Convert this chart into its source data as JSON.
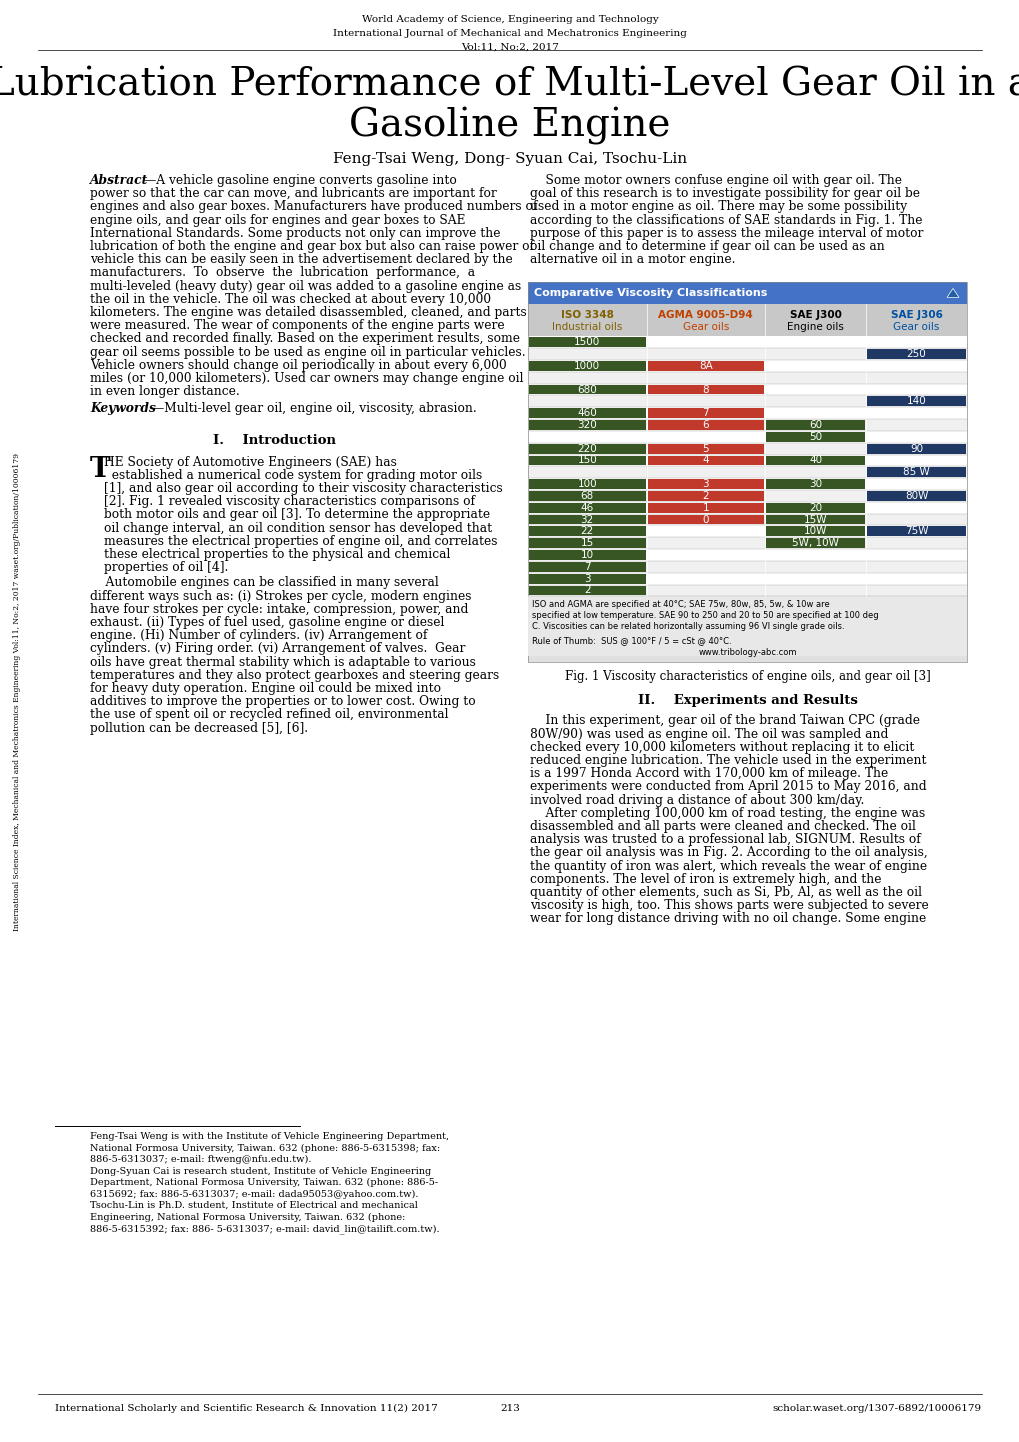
{
  "bg_color": "#ffffff",
  "header_line1": "World Academy of Science, Engineering and Technology",
  "header_line2": "International Journal of Mechanical and Mechatronics Engineering",
  "header_line3": "Vol:11, No:2, 2017",
  "title_line1": "Lubrication Performance of Multi-Level Gear Oil in a",
  "title_line2": "Gasoline Engine",
  "authors": "Feng-Tsai Weng, Dong- Syuan Cai, Tsochu-Lin",
  "footer_left": "International Scholarly and Scientific Research & Innovation 11(2) 2017",
  "footer_mid": "213",
  "footer_right": "scholar.waset.org/1307-6892/10006179",
  "sidebar_text": "International Science Index, Mechanical and Mechatronics Engineering Vol:11, No:2, 2017 waset.org/Publication/10006179",
  "fig1_caption": "Fig. 1 Viscosity characteristics of engine oils, and gear oil [3]",
  "section2_header": "II.",
  "section2_title": "Experiments and Results",
  "table_header_color": "#4472c4",
  "table_subheader_color": "#d9d9d9",
  "green_color": "#375623",
  "orange_color": "#c0392b",
  "blue_color": "#1f3864",
  "dark_green_col3": "#375623"
}
